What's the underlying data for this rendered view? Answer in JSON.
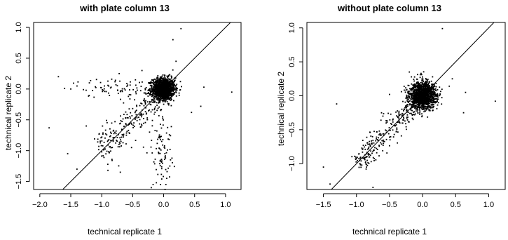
{
  "chart_data": [
    {
      "type": "scatter",
      "title": "with plate column 13",
      "xlabel": "technical replicate 1",
      "ylabel": "technical replicate 2",
      "xlim": [
        -2.1,
        1.25
      ],
      "ylim": [
        -1.63,
        1.08
      ],
      "xticks": [
        -2.0,
        -1.5,
        -1.0,
        -0.5,
        0.0,
        0.5,
        1.0
      ],
      "xtick_labels": [
        "−2.0",
        "−1.5",
        "−1.0",
        "−0.5",
        "0.0",
        "0.5",
        "1.0"
      ],
      "yticks": [
        -1.5,
        -1.0,
        -0.5,
        0.0,
        0.5,
        1.0
      ],
      "ytick_labels": [
        "−1.5",
        "−1.0",
        "−0.5",
        "0.0",
        "0.5",
        "1.0"
      ],
      "grid": false,
      "reference_line": "y = x",
      "point_color": "#000000",
      "point_groups": [
        {
          "description": "dense cluster",
          "cx": 0.0,
          "cy": 0.0,
          "sx": 0.09,
          "sy": 0.09,
          "n": 1400
        },
        {
          "description": "diagonal tail",
          "along_from": -1.05,
          "along_to": -0.1,
          "offset_sd": 0.12,
          "n": 220
        },
        {
          "description": "vertical spread near x=0",
          "cx": -0.03,
          "cy": -0.95,
          "sx": 0.08,
          "sy": 0.35,
          "n": 90
        },
        {
          "description": "horizontal spread",
          "cx": -0.75,
          "cy": 0.02,
          "sx": 0.35,
          "sy": 0.08,
          "n": 80
        }
      ],
      "outliers": [
        {
          "x": -1.85,
          "y": -0.63
        },
        {
          "x": -1.7,
          "y": 0.2
        },
        {
          "x": -1.6,
          "y": 0.01
        },
        {
          "x": -1.55,
          "y": -1.05
        },
        {
          "x": -1.5,
          "y": 0.0
        },
        {
          "x": -1.4,
          "y": -1.3
        },
        {
          "x": -1.25,
          "y": -0.6
        },
        {
          "x": -1.2,
          "y": 0.1
        },
        {
          "x": 1.1,
          "y": -0.05
        },
        {
          "x": 0.65,
          "y": 0.03
        },
        {
          "x": 0.6,
          "y": -0.28
        },
        {
          "x": 0.45,
          "y": -0.38
        },
        {
          "x": 0.28,
          "y": 0.98
        },
        {
          "x": 0.15,
          "y": 0.8
        },
        {
          "x": 0.2,
          "y": 0.45
        },
        {
          "x": -0.35,
          "y": 0.3
        },
        {
          "x": -0.2,
          "y": -1.6
        },
        {
          "x": 0.05,
          "y": -1.45
        },
        {
          "x": 0.1,
          "y": -1.25
        },
        {
          "x": -0.05,
          "y": -1.55
        },
        {
          "x": -0.9,
          "y": -1.32
        },
        {
          "x": -0.7,
          "y": -1.35
        }
      ]
    },
    {
      "type": "scatter",
      "title": "without plate column 13",
      "xlabel": "technical replicate 1",
      "ylabel": "technical replicate 2",
      "xlim": [
        -1.75,
        1.25
      ],
      "ylim": [
        -1.38,
        1.08
      ],
      "xticks": [
        -1.5,
        -1.0,
        -0.5,
        0.0,
        0.5,
        1.0
      ],
      "xtick_labels": [
        "−1.5",
        "−1.0",
        "−0.5",
        "0.0",
        "0.5",
        "1.0"
      ],
      "yticks": [
        -1.0,
        -0.5,
        0.0,
        0.5,
        1.0
      ],
      "ytick_labels": [
        "−1.0",
        "−0.5",
        "0.0",
        "0.5",
        "1.0"
      ],
      "grid": false,
      "reference_line": "y = x",
      "point_color": "#000000",
      "point_groups": [
        {
          "description": "dense cluster",
          "cx": 0.0,
          "cy": 0.0,
          "sx": 0.1,
          "sy": 0.1,
          "n": 1500
        },
        {
          "description": "diagonal tail",
          "along_from": -1.0,
          "along_to": -0.15,
          "offset_sd": 0.08,
          "n": 240
        }
      ],
      "outliers": [
        {
          "x": -1.5,
          "y": -1.05
        },
        {
          "x": -1.4,
          "y": -1.3
        },
        {
          "x": -1.3,
          "y": -0.12
        },
        {
          "x": -0.6,
          "y": -0.3
        },
        {
          "x": -0.5,
          "y": 0.02
        },
        {
          "x": 0.3,
          "y": 0.99
        },
        {
          "x": 0.45,
          "y": 0.25
        },
        {
          "x": 0.65,
          "y": 0.05
        },
        {
          "x": 0.62,
          "y": -0.25
        },
        {
          "x": 1.1,
          "y": -0.08
        },
        {
          "x": -0.85,
          "y": -1.05
        },
        {
          "x": -0.75,
          "y": -1.35
        },
        {
          "x": -0.2,
          "y": 0.35
        }
      ]
    }
  ]
}
